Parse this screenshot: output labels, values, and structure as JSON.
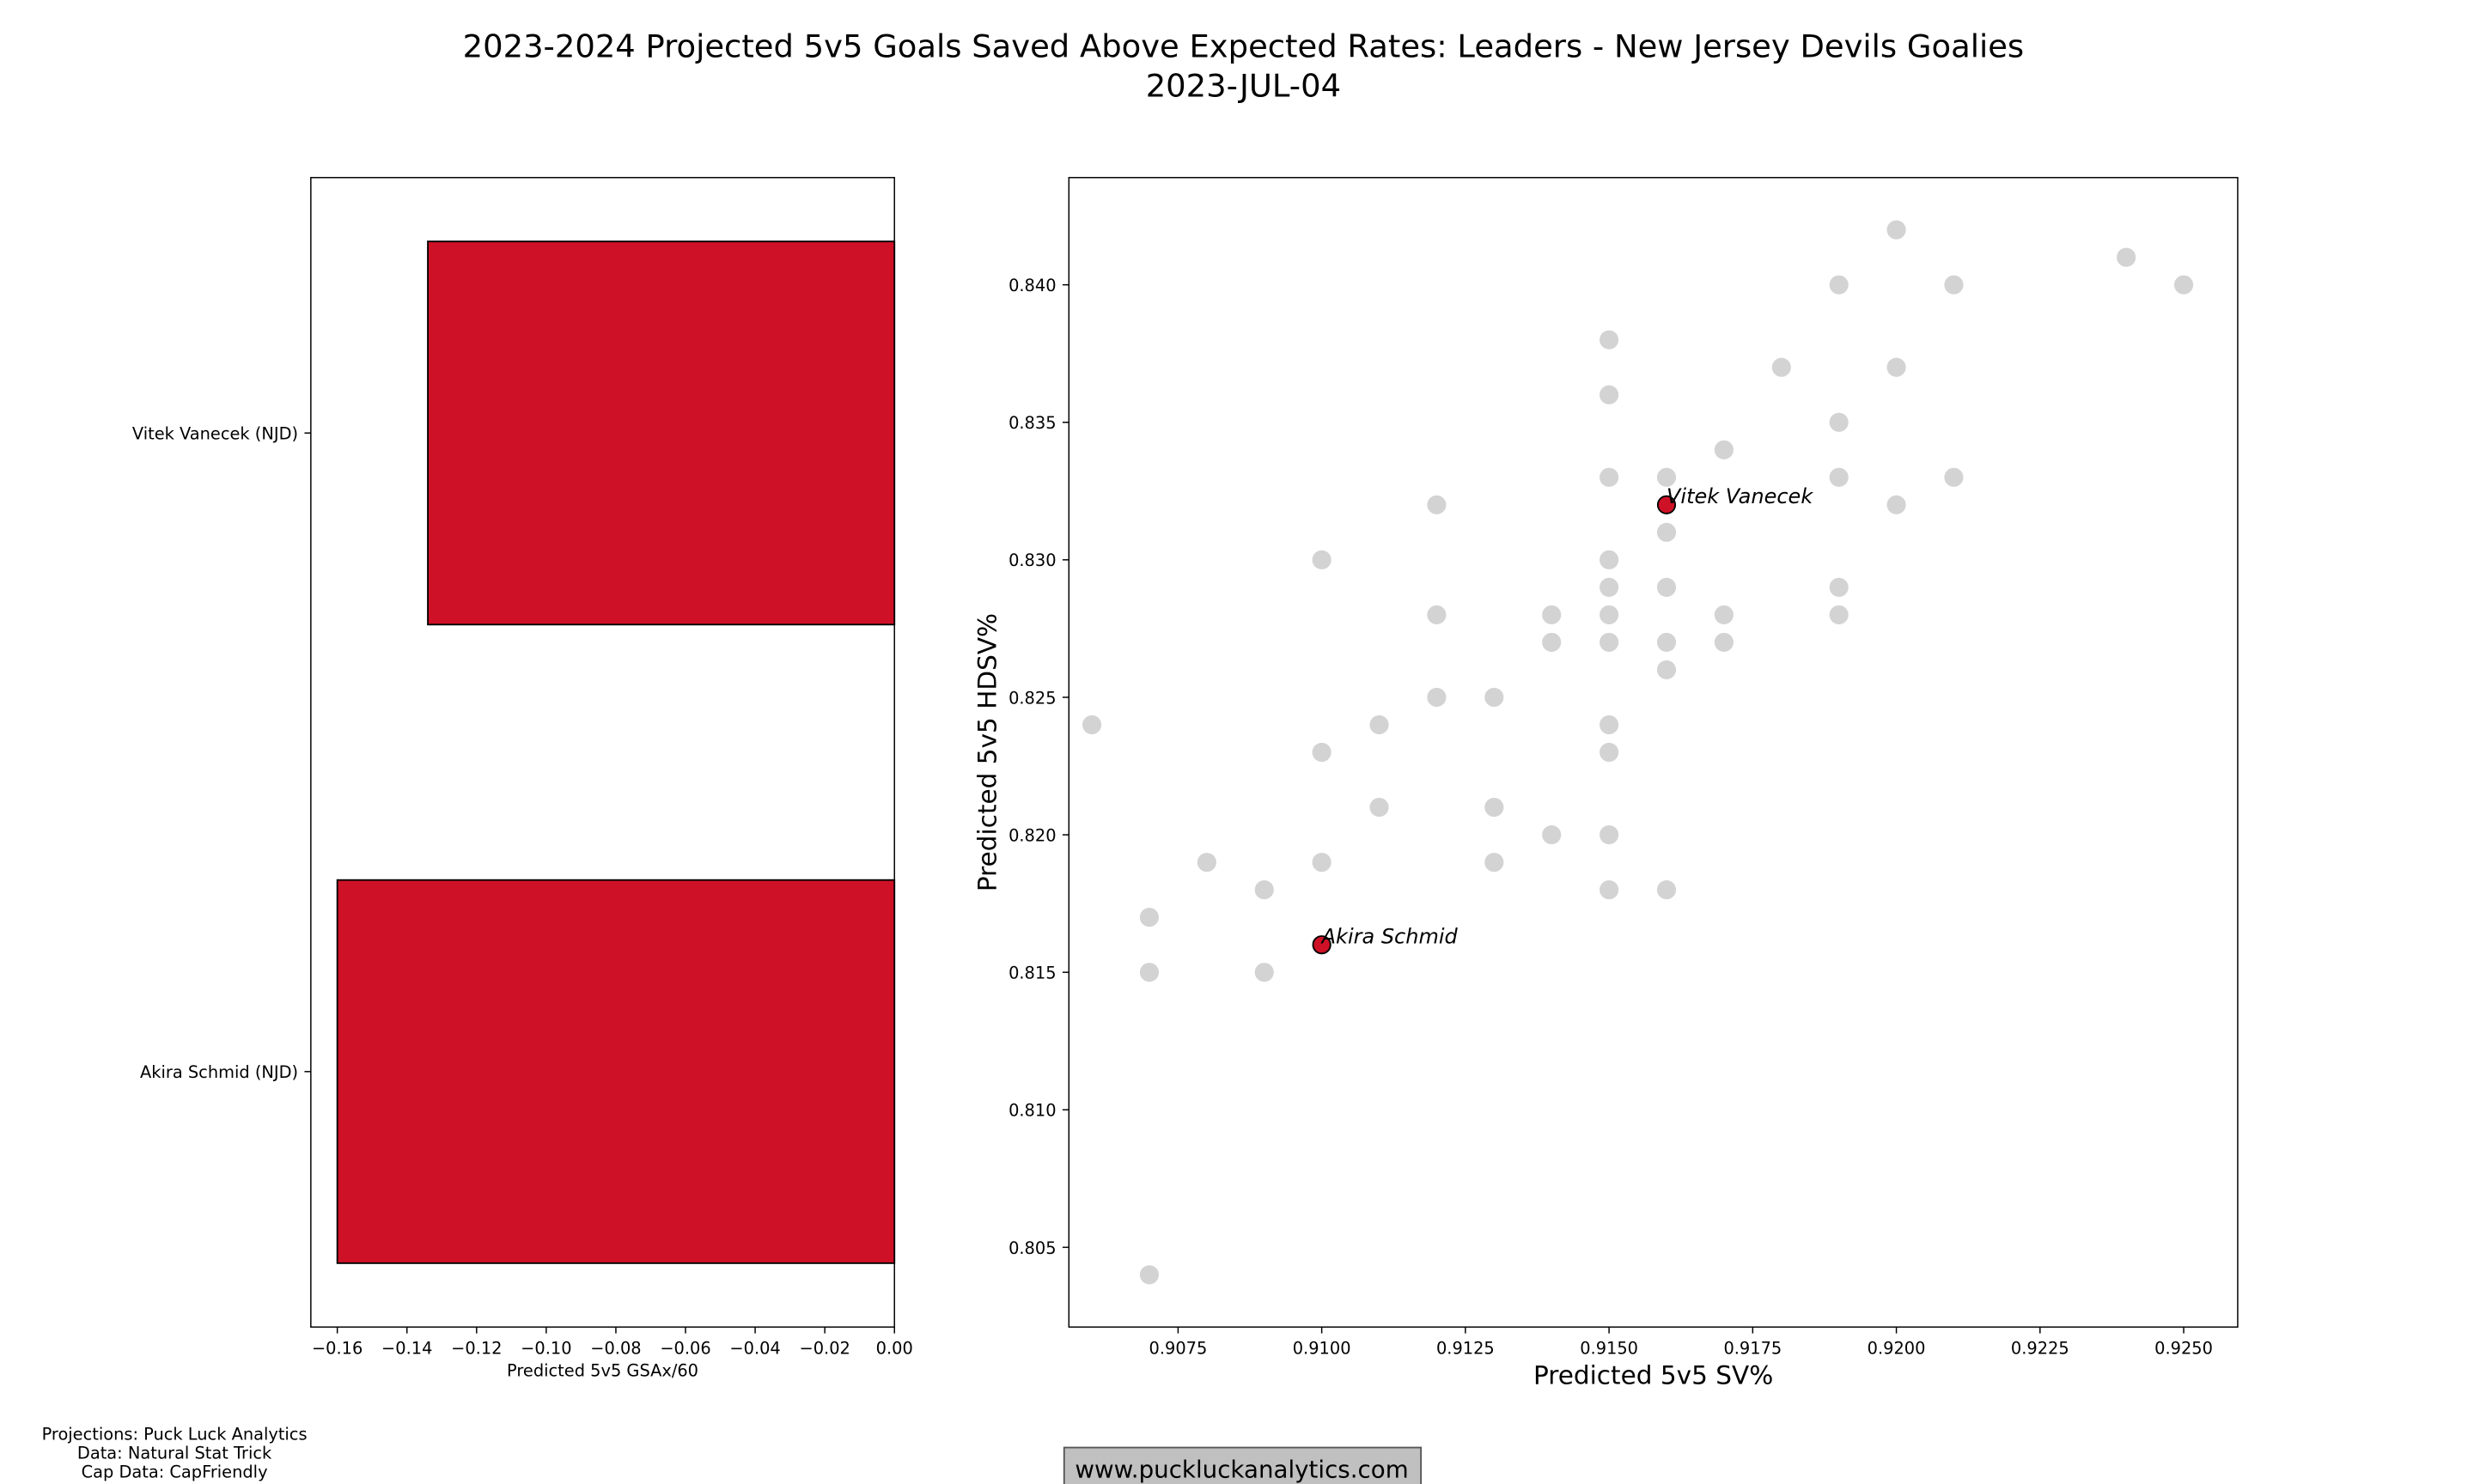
{
  "title": "2023-2024 Projected 5v5 Goals Saved Above Expected Rates: Leaders - New Jersey Devils Goalies",
  "subtitle": "2023-JUL-04",
  "footer": {
    "credits": [
      "Projections: Puck Luck Analytics",
      "Data: Natural Stat Trick",
      "Cap Data: CapFriendly"
    ],
    "website": "www.puckluckanalytics.com"
  },
  "colors": {
    "team": "#CE1126",
    "other": "#D3D3D3",
    "website_box": "#C0C0C0"
  },
  "chart_data": [
    {
      "type": "bar",
      "orientation": "horizontal",
      "categories": [
        "Akira Schmid (NJD)",
        "Vitek Vanecek (NJD)"
      ],
      "values": [
        -0.16,
        -0.134
      ],
      "xlabel": "Predicted 5v5 GSAx/60",
      "ylabel": "",
      "xlim": [
        -0.1676,
        0
      ],
      "xticks": [
        "−0.16",
        "−0.14",
        "−0.12",
        "−0.10",
        "−0.08",
        "−0.06",
        "−0.04",
        "−0.02",
        "0.00"
      ],
      "xtick_values": [
        -0.16,
        -0.14,
        -0.12,
        -0.1,
        -0.08,
        -0.06,
        -0.04,
        -0.02,
        0.0
      ],
      "grid": false
    },
    {
      "type": "scatter",
      "xlabel": "Predicted 5v5 SV%",
      "ylabel": "Predicted 5v5 HDSV%",
      "xlim": [
        0.9056,
        0.92594
      ],
      "ylim": [
        0.8021,
        0.8439
      ],
      "xticks": [
        "0.9075",
        "0.9100",
        "0.9125",
        "0.9150",
        "0.9175",
        "0.9200",
        "0.9225",
        "0.9250"
      ],
      "xtick_values": [
        0.9075,
        0.91,
        0.9125,
        0.915,
        0.9175,
        0.92,
        0.9225,
        0.925
      ],
      "yticks": [
        "0.805",
        "0.810",
        "0.815",
        "0.820",
        "0.825",
        "0.830",
        "0.835",
        "0.840"
      ],
      "ytick_values": [
        0.805,
        0.81,
        0.815,
        0.82,
        0.825,
        0.83,
        0.835,
        0.84
      ],
      "grid": false,
      "points": [
        [
          0.906,
          0.824
        ],
        [
          0.907,
          0.817
        ],
        [
          0.907,
          0.815
        ],
        [
          0.907,
          0.804
        ],
        [
          0.908,
          0.819
        ],
        [
          0.909,
          0.818
        ],
        [
          0.909,
          0.815
        ],
        [
          0.91,
          0.83
        ],
        [
          0.91,
          0.823
        ],
        [
          0.91,
          0.819
        ],
        [
          0.911,
          0.824
        ],
        [
          0.911,
          0.821
        ],
        [
          0.912,
          0.832
        ],
        [
          0.912,
          0.828
        ],
        [
          0.912,
          0.825
        ],
        [
          0.913,
          0.825
        ],
        [
          0.913,
          0.821
        ],
        [
          0.913,
          0.819
        ],
        [
          0.914,
          0.828
        ],
        [
          0.914,
          0.827
        ],
        [
          0.914,
          0.82
        ],
        [
          0.915,
          0.838
        ],
        [
          0.915,
          0.836
        ],
        [
          0.915,
          0.833
        ],
        [
          0.915,
          0.83
        ],
        [
          0.915,
          0.829
        ],
        [
          0.915,
          0.828
        ],
        [
          0.915,
          0.827
        ],
        [
          0.915,
          0.824
        ],
        [
          0.915,
          0.823
        ],
        [
          0.915,
          0.82
        ],
        [
          0.915,
          0.818
        ],
        [
          0.916,
          0.833
        ],
        [
          0.916,
          0.831
        ],
        [
          0.916,
          0.829
        ],
        [
          0.916,
          0.827
        ],
        [
          0.916,
          0.826
        ],
        [
          0.916,
          0.818
        ],
        [
          0.917,
          0.834
        ],
        [
          0.917,
          0.828
        ],
        [
          0.917,
          0.827
        ],
        [
          0.918,
          0.837
        ],
        [
          0.919,
          0.84
        ],
        [
          0.919,
          0.835
        ],
        [
          0.919,
          0.833
        ],
        [
          0.919,
          0.829
        ],
        [
          0.919,
          0.828
        ],
        [
          0.92,
          0.842
        ],
        [
          0.92,
          0.837
        ],
        [
          0.92,
          0.832
        ],
        [
          0.921,
          0.84
        ],
        [
          0.921,
          0.833
        ],
        [
          0.924,
          0.841
        ],
        [
          0.925,
          0.84
        ]
      ],
      "highlighted": [
        {
          "label": "Vitek Vanecek",
          "x": 0.916,
          "y": 0.832
        },
        {
          "label": "Akira Schmid",
          "x": 0.91,
          "y": 0.816
        }
      ]
    }
  ]
}
